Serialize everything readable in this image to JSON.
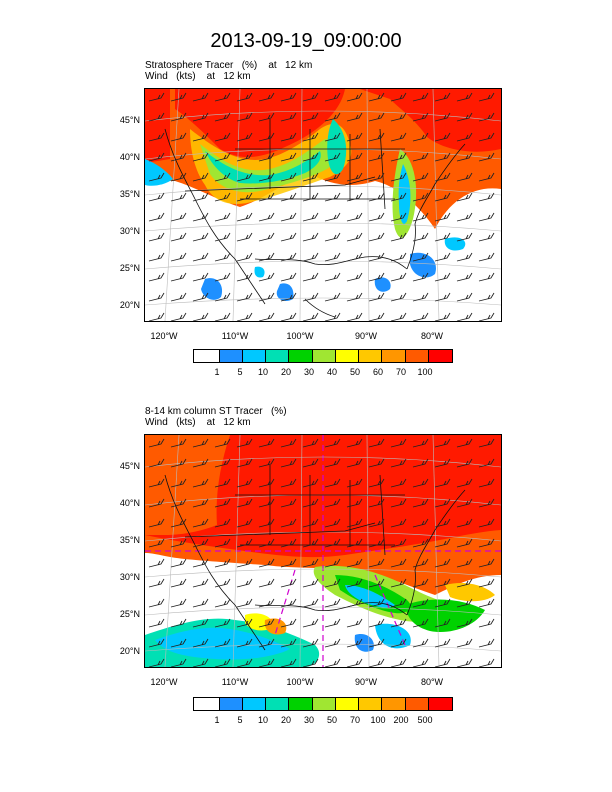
{
  "title": "2013-09-19_09:00:00",
  "panels": [
    {
      "subtitle_line1": "Stratosphere Tracer   (%)    at   12 km",
      "subtitle_line2": "Wind   (kts)    at   12 km",
      "lat_labels": [
        "45°N",
        "40°N",
        "35°N",
        "30°N",
        "25°N",
        "20°N"
      ],
      "lon_labels": [
        "120°W",
        "110°W",
        "100°W",
        "90°W",
        "80°W"
      ],
      "colorbar_labels": [
        "1",
        "5",
        "10",
        "20",
        "30",
        "40",
        "50",
        "60",
        "70",
        "100"
      ]
    },
    {
      "subtitle_line1": "8-14 km column ST Tracer   (%)",
      "subtitle_line2": "Wind   (kts)    at   12 km",
      "lat_labels": [
        "45°N",
        "40°N",
        "35°N",
        "30°N",
        "25°N",
        "20°N"
      ],
      "lon_labels": [
        "120°W",
        "110°W",
        "100°W",
        "90°W",
        "80°W"
      ],
      "colorbar_labels": [
        "1",
        "5",
        "10",
        "20",
        "30",
        "50",
        "70",
        "100",
        "200",
        "500"
      ]
    }
  ],
  "colorbar_colors": [
    "#ffffff",
    "#1e90ff",
    "#00c8ff",
    "#00e0b4",
    "#00d200",
    "#a0e632",
    "#ffff00",
    "#ffc800",
    "#ff9600",
    "#ff5a00",
    "#ff0000"
  ]
}
